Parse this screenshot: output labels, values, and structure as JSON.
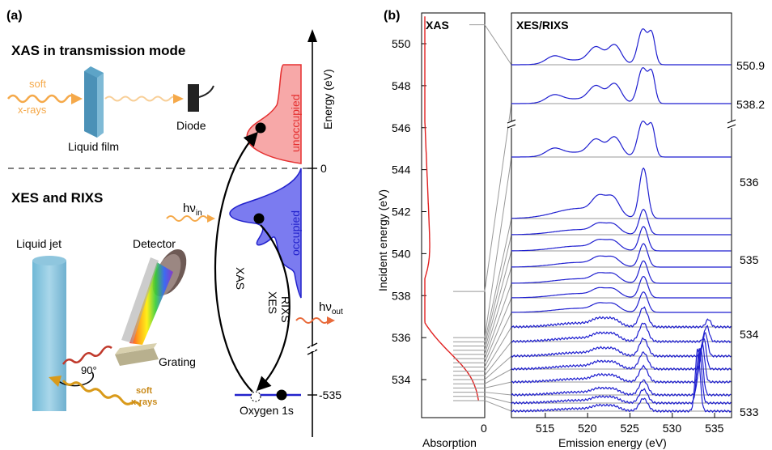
{
  "panel_a": {
    "label": "(a)",
    "xas_title": "XAS in transmission mode",
    "soft": "soft",
    "xrays": "x-rays",
    "liquid_film": "Liquid film",
    "diode": "Diode",
    "xes_title": "XES and RIXS",
    "liquid_jet": "Liquid jet",
    "detector": "Detector",
    "grating": "Grating",
    "angle": "90°",
    "soft2": "soft",
    "xrays2": "x-rays",
    "hv_in": "hν",
    "hv_in_sub": "in",
    "hv_out": "hν",
    "hv_out_sub": "out",
    "xas_arrow": "XAS",
    "xes_arrow": "XES",
    "rixs_arrow": "RIXS",
    "unoccupied": "unoccupied",
    "occupied": "occupied",
    "energy_axis": "Energy (eV)",
    "tick_zero": "0",
    "tick_535": "-535",
    "oxygen": "Oxygen 1s",
    "colors": {
      "unoccupied": "#f08080",
      "occupied": "#5050e8",
      "beam": "#f5a94a"
    }
  },
  "panel_b": {
    "label": "(b)",
    "xas_header": "XAS",
    "xes_header": "XES/RIXS",
    "ylabel": "Incident energy (eV)",
    "xlabel_left": "Absorption",
    "xlabel_right": "Emission energy (eV)",
    "abs_zero": "0",
    "yticks": [
      "550",
      "548",
      "546",
      "544",
      "542",
      "540",
      "538",
      "536",
      "534"
    ],
    "xticks": [
      "515",
      "520",
      "525",
      "530",
      "535"
    ],
    "right_labels": [
      "550.9",
      "538.2",
      "536",
      "535",
      "534",
      "533"
    ]
  },
  "chart_data": {
    "type": "line",
    "title": "",
    "ylabel": "Incident energy (eV)",
    "xlabel": "Emission energy (eV)",
    "ylim": [
      532.5,
      551.5
    ],
    "xlim": [
      511,
      537
    ],
    "xas_absorption_edge_eV": 535,
    "rixs_excitation_energies": [
      550.9,
      538.2,
      536,
      535.8,
      535.6,
      535.4,
      535.2,
      535,
      534.8,
      534.6,
      534.4,
      534.2,
      534,
      533.8,
      533.6,
      533.4,
      533.2,
      533
    ],
    "main_peak_emission_eV": 526.8,
    "secondary_peaks_emission_eV": [
      521,
      523.2,
      527.5
    ],
    "elastic_peak_emission_eV": 533
  }
}
